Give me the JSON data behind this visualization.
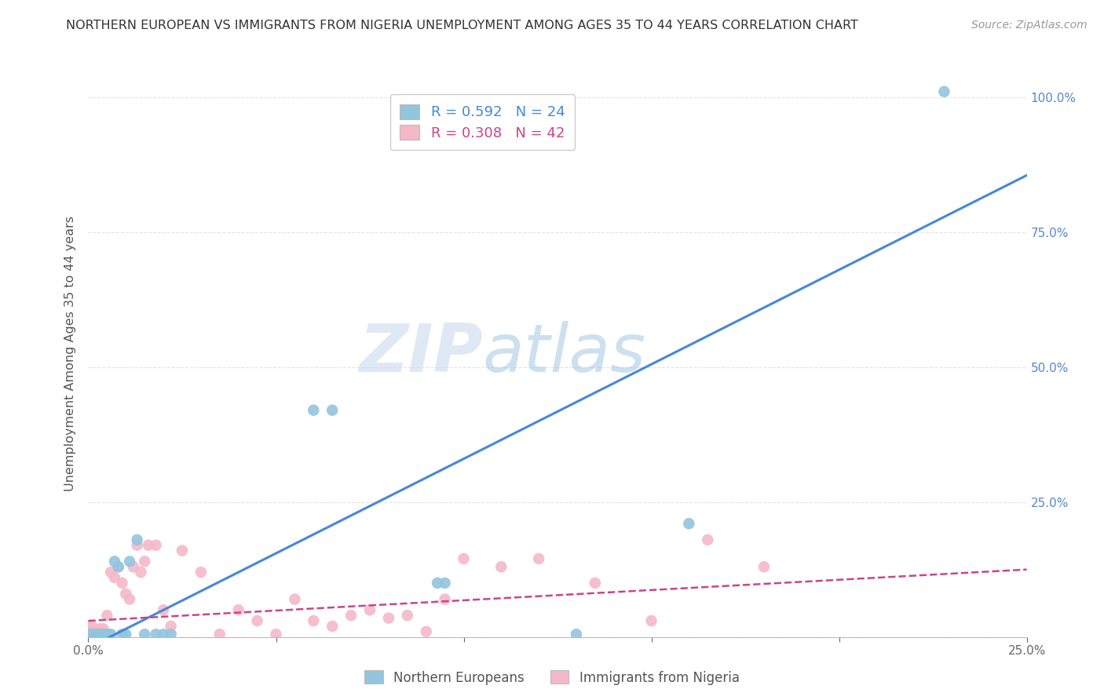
{
  "title": "NORTHERN EUROPEAN VS IMMIGRANTS FROM NIGERIA UNEMPLOYMENT AMONG AGES 35 TO 44 YEARS CORRELATION CHART",
  "source": "Source: ZipAtlas.com",
  "ylabel": "Unemployment Among Ages 35 to 44 years",
  "xlim": [
    0.0,
    0.25
  ],
  "ylim": [
    0.0,
    1.05
  ],
  "legend_text_blue": "R = 0.592   N = 24",
  "legend_text_pink": "R = 0.308   N = 42",
  "legend_label_blue": "Northern Europeans",
  "legend_label_pink": "Immigrants from Nigeria",
  "blue_color": "#92c5de",
  "pink_color": "#f4b8c8",
  "blue_line_color": "#4488dd",
  "pink_line_color": "#cc4488",
  "watermark_zip": "ZIP",
  "watermark_atlas": "atlas",
  "blue_scatter_x": [
    0.0005,
    0.001,
    0.002,
    0.003,
    0.004,
    0.005,
    0.006,
    0.007,
    0.008,
    0.009,
    0.01,
    0.011,
    0.013,
    0.015,
    0.018,
    0.02,
    0.022,
    0.06,
    0.065,
    0.093,
    0.095,
    0.13,
    0.16,
    0.228
  ],
  "blue_scatter_y": [
    0.005,
    0.005,
    0.005,
    0.005,
    0.005,
    0.005,
    0.005,
    0.14,
    0.13,
    0.005,
    0.005,
    0.14,
    0.18,
    0.005,
    0.005,
    0.005,
    0.005,
    0.42,
    0.42,
    0.1,
    0.1,
    0.005,
    0.21,
    1.01
  ],
  "pink_scatter_x": [
    0.0,
    0.001,
    0.002,
    0.003,
    0.004,
    0.005,
    0.006,
    0.007,
    0.008,
    0.009,
    0.01,
    0.011,
    0.012,
    0.013,
    0.014,
    0.015,
    0.016,
    0.018,
    0.02,
    0.022,
    0.025,
    0.03,
    0.035,
    0.04,
    0.045,
    0.05,
    0.055,
    0.06,
    0.065,
    0.07,
    0.075,
    0.08,
    0.085,
    0.09,
    0.095,
    0.1,
    0.11,
    0.12,
    0.135,
    0.15,
    0.165,
    0.18
  ],
  "pink_scatter_y": [
    0.02,
    0.02,
    0.01,
    0.015,
    0.015,
    0.04,
    0.12,
    0.11,
    0.13,
    0.1,
    0.08,
    0.07,
    0.13,
    0.17,
    0.12,
    0.14,
    0.17,
    0.17,
    0.05,
    0.02,
    0.16,
    0.12,
    0.005,
    0.05,
    0.03,
    0.005,
    0.07,
    0.03,
    0.02,
    0.04,
    0.05,
    0.035,
    0.04,
    0.01,
    0.07,
    0.145,
    0.13,
    0.145,
    0.1,
    0.03,
    0.18,
    0.13
  ],
  "blue_line_x0": 0.0,
  "blue_line_y0": -0.02,
  "blue_line_x1": 0.25,
  "blue_line_y1": 0.855,
  "pink_line_x0": 0.0,
  "pink_line_y0": 0.03,
  "pink_line_x1": 0.25,
  "pink_line_y1": 0.125,
  "background_color": "#ffffff",
  "grid_color": "#dddddd"
}
